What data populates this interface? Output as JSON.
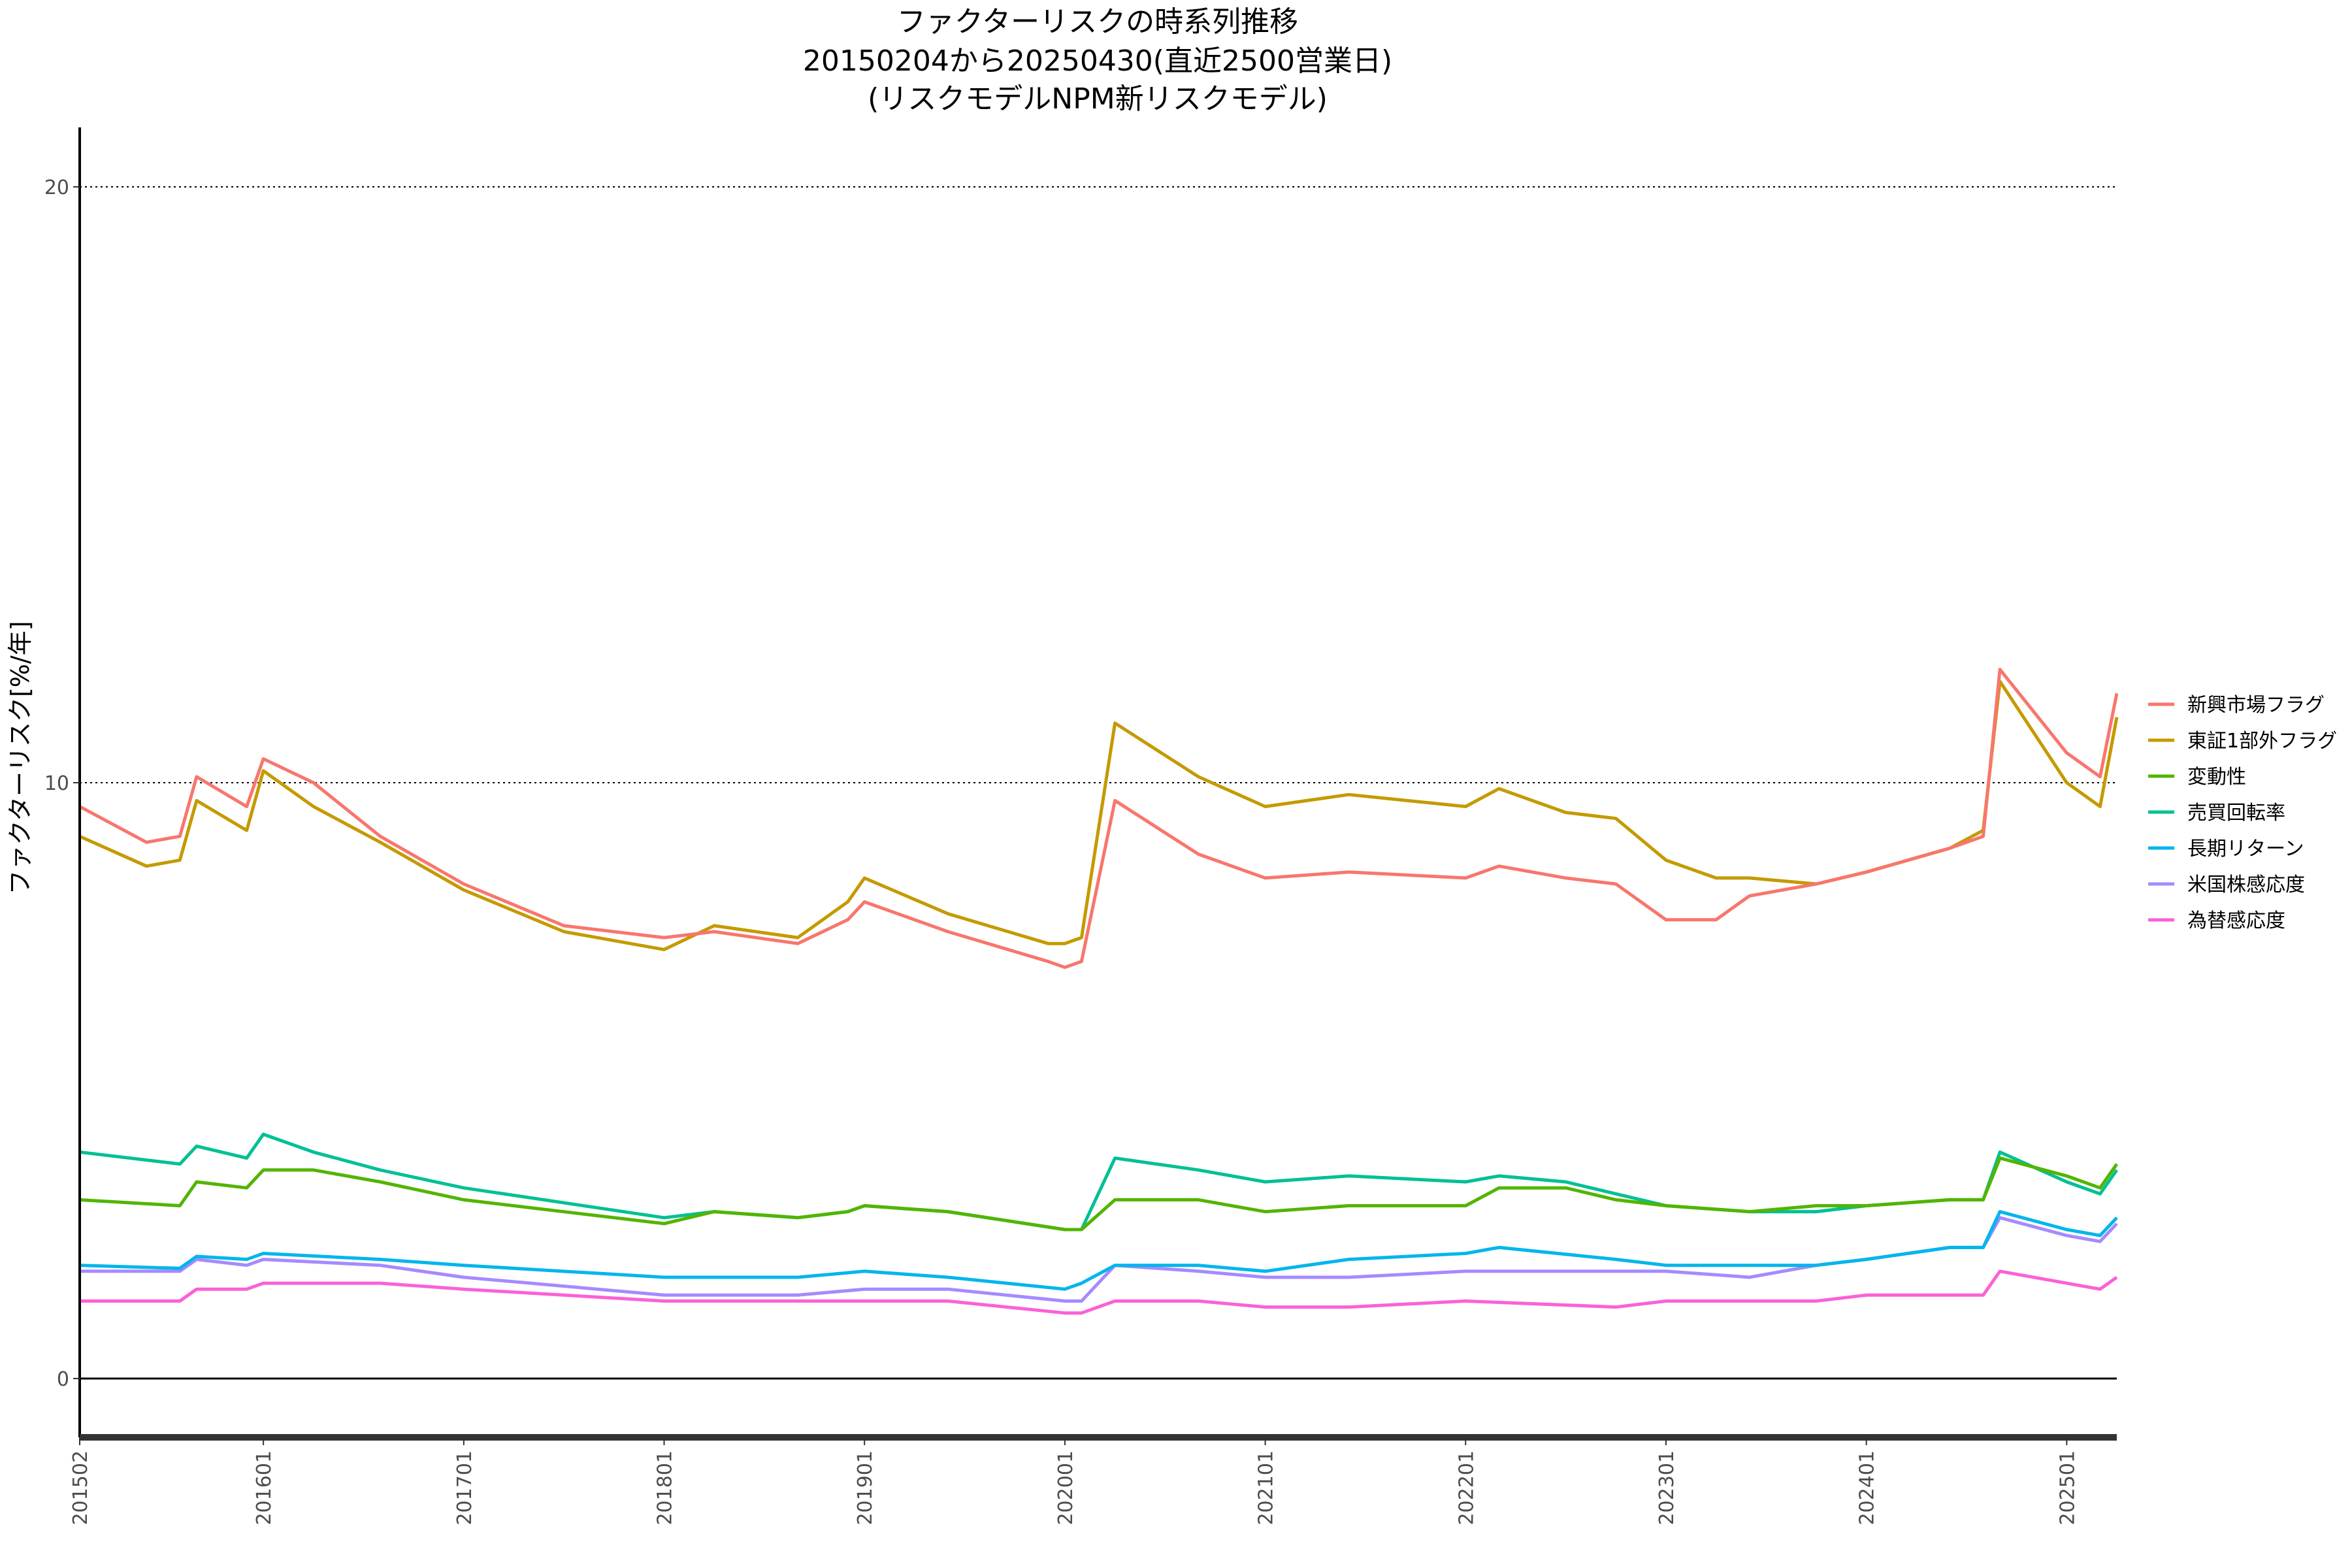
{
  "chart_data": {
    "type": "line",
    "title": [
      "ファクターリスクの時系列推移",
      "20150204から20250430(直近2500営業日)",
      "(リスクモデルNPM新リスクモデル)"
    ],
    "xlabel": "",
    "ylabel": "ファクターリスク[%/年]",
    "x_ticks": [
      "201502",
      "201601",
      "201701",
      "201801",
      "201901",
      "202001",
      "202101",
      "202201",
      "202301",
      "202401",
      "202501"
    ],
    "y_ticks": [
      0,
      10,
      20
    ],
    "ylim": [
      -1,
      21
    ],
    "xlim": [
      "201502",
      "202504"
    ],
    "grid": "dotted horizontal at major ticks",
    "legend_position": "right",
    "series": [
      {
        "name": "新興市場フラグ",
        "color": "#F8766D",
        "points": [
          [
            "2015-02",
            9.6
          ],
          [
            "2015-06",
            9.0
          ],
          [
            "2015-08",
            9.1
          ],
          [
            "2015-09",
            10.1
          ],
          [
            "2015-12",
            9.6
          ],
          [
            "2016-01",
            10.4
          ],
          [
            "2016-04",
            10.0
          ],
          [
            "2016-08",
            9.1
          ],
          [
            "2017-01",
            8.3
          ],
          [
            "2017-07",
            7.6
          ],
          [
            "2018-01",
            7.4
          ],
          [
            "2018-04",
            7.5
          ],
          [
            "2018-09",
            7.3
          ],
          [
            "2018-12",
            7.7
          ],
          [
            "2019-01",
            8.0
          ],
          [
            "2019-06",
            7.5
          ],
          [
            "2019-12",
            7.0
          ],
          [
            "2020-01",
            6.9
          ],
          [
            "2020-02",
            7.0
          ],
          [
            "2020-04",
            9.7
          ],
          [
            "2020-09",
            8.8
          ],
          [
            "2021-01",
            8.4
          ],
          [
            "2021-06",
            8.5
          ],
          [
            "2022-01",
            8.4
          ],
          [
            "2022-03",
            8.6
          ],
          [
            "2022-07",
            8.4
          ],
          [
            "2022-10",
            8.3
          ],
          [
            "2023-01",
            7.7
          ],
          [
            "2023-04",
            7.7
          ],
          [
            "2023-06",
            8.1
          ],
          [
            "2023-10",
            8.3
          ],
          [
            "2024-01",
            8.5
          ],
          [
            "2024-06",
            8.9
          ],
          [
            "2024-08",
            9.1
          ],
          [
            "2024-09",
            11.9
          ],
          [
            "2025-01",
            10.5
          ],
          [
            "2025-03",
            10.1
          ],
          [
            "2025-04",
            11.5
          ]
        ]
      },
      {
        "name": "東証1部外フラグ",
        "color": "#C49A00",
        "points": [
          [
            "2015-02",
            9.1
          ],
          [
            "2015-06",
            8.6
          ],
          [
            "2015-08",
            8.7
          ],
          [
            "2015-09",
            9.7
          ],
          [
            "2015-12",
            9.2
          ],
          [
            "2016-01",
            10.2
          ],
          [
            "2016-04",
            9.6
          ],
          [
            "2016-08",
            9.0
          ],
          [
            "2017-01",
            8.2
          ],
          [
            "2017-07",
            7.5
          ],
          [
            "2018-01",
            7.2
          ],
          [
            "2018-04",
            7.6
          ],
          [
            "2018-09",
            7.4
          ],
          [
            "2018-12",
            8.0
          ],
          [
            "2019-01",
            8.4
          ],
          [
            "2019-06",
            7.8
          ],
          [
            "2019-12",
            7.3
          ],
          [
            "2020-01",
            7.3
          ],
          [
            "2020-02",
            7.4
          ],
          [
            "2020-04",
            11.0
          ],
          [
            "2020-09",
            10.1
          ],
          [
            "2021-01",
            9.6
          ],
          [
            "2021-06",
            9.8
          ],
          [
            "2022-01",
            9.6
          ],
          [
            "2022-03",
            9.9
          ],
          [
            "2022-07",
            9.5
          ],
          [
            "2022-10",
            9.4
          ],
          [
            "2023-01",
            8.7
          ],
          [
            "2023-04",
            8.4
          ],
          [
            "2023-06",
            8.4
          ],
          [
            "2023-10",
            8.3
          ],
          [
            "2024-01",
            8.5
          ],
          [
            "2024-06",
            8.9
          ],
          [
            "2024-08",
            9.2
          ],
          [
            "2024-09",
            11.7
          ],
          [
            "2025-01",
            10.0
          ],
          [
            "2025-03",
            9.6
          ],
          [
            "2025-04",
            11.1
          ]
        ]
      },
      {
        "name": "変動性",
        "color": "#53B400",
        "points": [
          [
            "2015-02",
            3.0
          ],
          [
            "2015-08",
            2.9
          ],
          [
            "2015-09",
            3.3
          ],
          [
            "2015-12",
            3.2
          ],
          [
            "2016-01",
            3.5
          ],
          [
            "2016-04",
            3.5
          ],
          [
            "2016-08",
            3.3
          ],
          [
            "2017-01",
            3.0
          ],
          [
            "2018-01",
            2.6
          ],
          [
            "2018-04",
            2.8
          ],
          [
            "2018-09",
            2.7
          ],
          [
            "2018-12",
            2.8
          ],
          [
            "2019-01",
            2.9
          ],
          [
            "2019-06",
            2.8
          ],
          [
            "2020-01",
            2.5
          ],
          [
            "2020-02",
            2.5
          ],
          [
            "2020-04",
            3.0
          ],
          [
            "2020-09",
            3.0
          ],
          [
            "2021-01",
            2.8
          ],
          [
            "2021-06",
            2.9
          ],
          [
            "2022-01",
            2.9
          ],
          [
            "2022-03",
            3.2
          ],
          [
            "2022-07",
            3.2
          ],
          [
            "2022-10",
            3.0
          ],
          [
            "2023-01",
            2.9
          ],
          [
            "2023-06",
            2.8
          ],
          [
            "2023-10",
            2.9
          ],
          [
            "2024-01",
            2.9
          ],
          [
            "2024-06",
            3.0
          ],
          [
            "2024-08",
            3.0
          ],
          [
            "2024-09",
            3.7
          ],
          [
            "2025-01",
            3.4
          ],
          [
            "2025-03",
            3.2
          ],
          [
            "2025-04",
            3.6
          ]
        ]
      },
      {
        "name": "売買回転率",
        "color": "#00C094",
        "points": [
          [
            "2015-02",
            3.8
          ],
          [
            "2015-08",
            3.6
          ],
          [
            "2015-09",
            3.9
          ],
          [
            "2015-12",
            3.7
          ],
          [
            "2016-01",
            4.1
          ],
          [
            "2016-04",
            3.8
          ],
          [
            "2016-08",
            3.5
          ],
          [
            "2017-01",
            3.2
          ],
          [
            "2018-01",
            2.7
          ],
          [
            "2018-04",
            2.8
          ],
          [
            "2018-09",
            2.7
          ],
          [
            "2018-12",
            2.8
          ],
          [
            "2019-01",
            2.9
          ],
          [
            "2019-06",
            2.8
          ],
          [
            "2020-01",
            2.5
          ],
          [
            "2020-02",
            2.5
          ],
          [
            "2020-04",
            3.7
          ],
          [
            "2020-09",
            3.5
          ],
          [
            "2021-01",
            3.3
          ],
          [
            "2021-06",
            3.4
          ],
          [
            "2022-01",
            3.3
          ],
          [
            "2022-03",
            3.4
          ],
          [
            "2022-07",
            3.3
          ],
          [
            "2022-10",
            3.1
          ],
          [
            "2023-01",
            2.9
          ],
          [
            "2023-06",
            2.8
          ],
          [
            "2023-10",
            2.8
          ],
          [
            "2024-01",
            2.9
          ],
          [
            "2024-06",
            3.0
          ],
          [
            "2024-08",
            3.0
          ],
          [
            "2024-09",
            3.8
          ],
          [
            "2025-01",
            3.3
          ],
          [
            "2025-03",
            3.1
          ],
          [
            "2025-04",
            3.5
          ]
        ]
      },
      {
        "name": "長期リターン",
        "color": "#00B6EB",
        "points": [
          [
            "2015-02",
            1.9
          ],
          [
            "2015-08",
            1.85
          ],
          [
            "2015-09",
            2.05
          ],
          [
            "2015-12",
            2.0
          ],
          [
            "2016-01",
            2.1
          ],
          [
            "2016-08",
            2.0
          ],
          [
            "2017-01",
            1.9
          ],
          [
            "2018-01",
            1.7
          ],
          [
            "2018-09",
            1.7
          ],
          [
            "2019-01",
            1.8
          ],
          [
            "2019-06",
            1.7
          ],
          [
            "2020-01",
            1.5
          ],
          [
            "2020-02",
            1.6
          ],
          [
            "2020-04",
            1.9
          ],
          [
            "2020-09",
            1.9
          ],
          [
            "2021-01",
            1.8
          ],
          [
            "2021-06",
            2.0
          ],
          [
            "2022-01",
            2.1
          ],
          [
            "2022-03",
            2.2
          ],
          [
            "2022-10",
            2.0
          ],
          [
            "2023-01",
            1.9
          ],
          [
            "2023-06",
            1.9
          ],
          [
            "2023-10",
            1.9
          ],
          [
            "2024-01",
            2.0
          ],
          [
            "2024-06",
            2.2
          ],
          [
            "2024-08",
            2.2
          ],
          [
            "2024-09",
            2.8
          ],
          [
            "2025-01",
            2.5
          ],
          [
            "2025-03",
            2.4
          ],
          [
            "2025-04",
            2.7
          ]
        ]
      },
      {
        "name": "米国株感応度",
        "color": "#A58AFF",
        "points": [
          [
            "2015-02",
            1.8
          ],
          [
            "2015-08",
            1.8
          ],
          [
            "2015-09",
            2.0
          ],
          [
            "2015-12",
            1.9
          ],
          [
            "2016-01",
            2.0
          ],
          [
            "2016-08",
            1.9
          ],
          [
            "2017-01",
            1.7
          ],
          [
            "2018-01",
            1.4
          ],
          [
            "2018-09",
            1.4
          ],
          [
            "2019-01",
            1.5
          ],
          [
            "2019-06",
            1.5
          ],
          [
            "2020-01",
            1.3
          ],
          [
            "2020-02",
            1.3
          ],
          [
            "2020-04",
            1.9
          ],
          [
            "2020-09",
            1.8
          ],
          [
            "2021-01",
            1.7
          ],
          [
            "2021-06",
            1.7
          ],
          [
            "2022-01",
            1.8
          ],
          [
            "2022-03",
            1.8
          ],
          [
            "2022-10",
            1.8
          ],
          [
            "2023-01",
            1.8
          ],
          [
            "2023-06",
            1.7
          ],
          [
            "2023-10",
            1.9
          ],
          [
            "2024-01",
            2.0
          ],
          [
            "2024-06",
            2.2
          ],
          [
            "2024-08",
            2.2
          ],
          [
            "2024-09",
            2.7
          ],
          [
            "2025-01",
            2.4
          ],
          [
            "2025-03",
            2.3
          ],
          [
            "2025-04",
            2.6
          ]
        ]
      },
      {
        "name": "為替感応度",
        "color": "#FB61D7",
        "points": [
          [
            "2015-02",
            1.3
          ],
          [
            "2015-08",
            1.3
          ],
          [
            "2015-09",
            1.5
          ],
          [
            "2015-12",
            1.5
          ],
          [
            "2016-01",
            1.6
          ],
          [
            "2016-08",
            1.6
          ],
          [
            "2017-01",
            1.5
          ],
          [
            "2018-01",
            1.3
          ],
          [
            "2018-09",
            1.3
          ],
          [
            "2019-01",
            1.3
          ],
          [
            "2019-06",
            1.3
          ],
          [
            "2020-01",
            1.1
          ],
          [
            "2020-02",
            1.1
          ],
          [
            "2020-04",
            1.3
          ],
          [
            "2020-09",
            1.3
          ],
          [
            "2021-01",
            1.2
          ],
          [
            "2021-06",
            1.2
          ],
          [
            "2022-01",
            1.3
          ],
          [
            "2022-10",
            1.2
          ],
          [
            "2023-01",
            1.3
          ],
          [
            "2023-06",
            1.3
          ],
          [
            "2023-10",
            1.3
          ],
          [
            "2024-01",
            1.4
          ],
          [
            "2024-06",
            1.4
          ],
          [
            "2024-08",
            1.4
          ],
          [
            "2024-09",
            1.8
          ],
          [
            "2025-01",
            1.6
          ],
          [
            "2025-03",
            1.5
          ],
          [
            "2025-04",
            1.7
          ]
        ]
      }
    ]
  }
}
